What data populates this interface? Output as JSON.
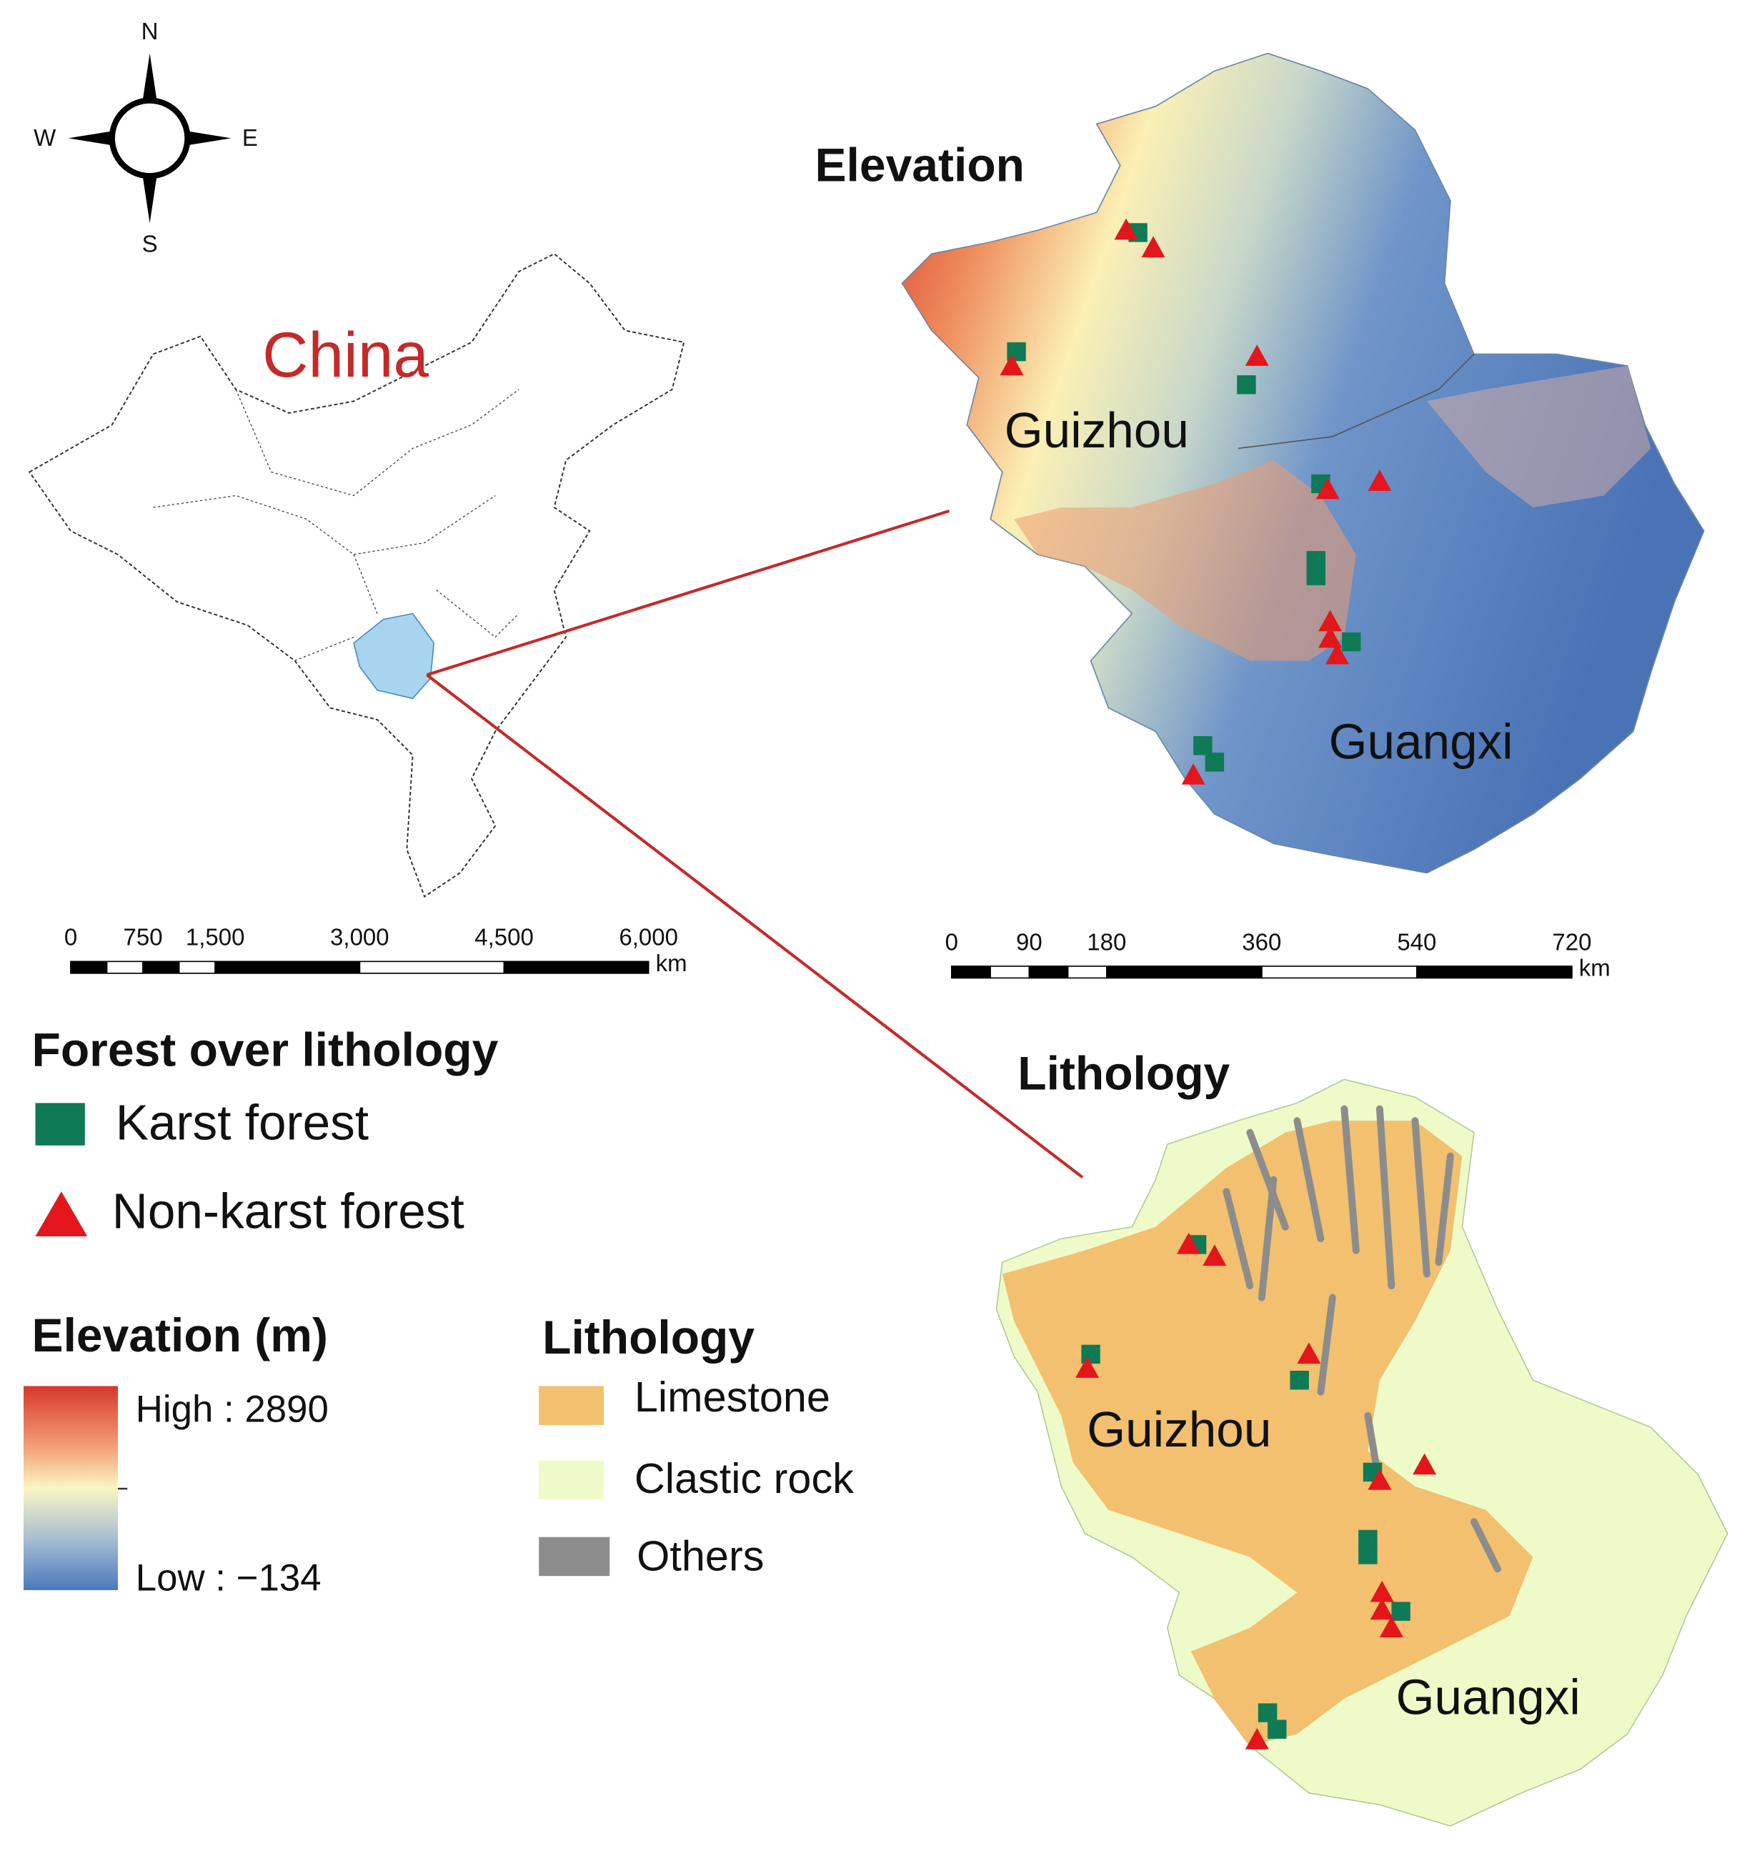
{
  "compass": {
    "north": "N",
    "east": "E",
    "south": "S",
    "west": "W"
  },
  "china_map": {
    "label": "China",
    "scale_bar": {
      "ticks": [
        0,
        750,
        {
          "value": 1500,
          "label": "1,500"
        },
        {
          "value": 3000,
          "label": "3,000"
        },
        {
          "value": 4500,
          "label": "4,500"
        },
        {
          "value": 6000,
          "label": "6,000"
        }
      ],
      "unit": "km"
    }
  },
  "elevation_map": {
    "title": "Elevation",
    "labels": [
      "Guizhou",
      "Guangxi"
    ],
    "scale_bar": {
      "ticks": [
        0,
        90,
        180,
        360,
        540,
        720
      ],
      "unit": "km"
    }
  },
  "lithology_map": {
    "title": "Lithology",
    "labels": [
      "Guizhou",
      "Guangxi"
    ]
  },
  "legend": {
    "forest": {
      "title": "Forest over lithology",
      "items": [
        "Karst forest",
        "Non-karst forest"
      ]
    },
    "elevation": {
      "title": "Elevation (m)",
      "high": "High : 2890",
      "low": "Low : −134"
    },
    "lithology": {
      "title": "Lithology",
      "items": [
        "Limestone",
        "Clastic rock",
        "Others"
      ]
    }
  }
}
